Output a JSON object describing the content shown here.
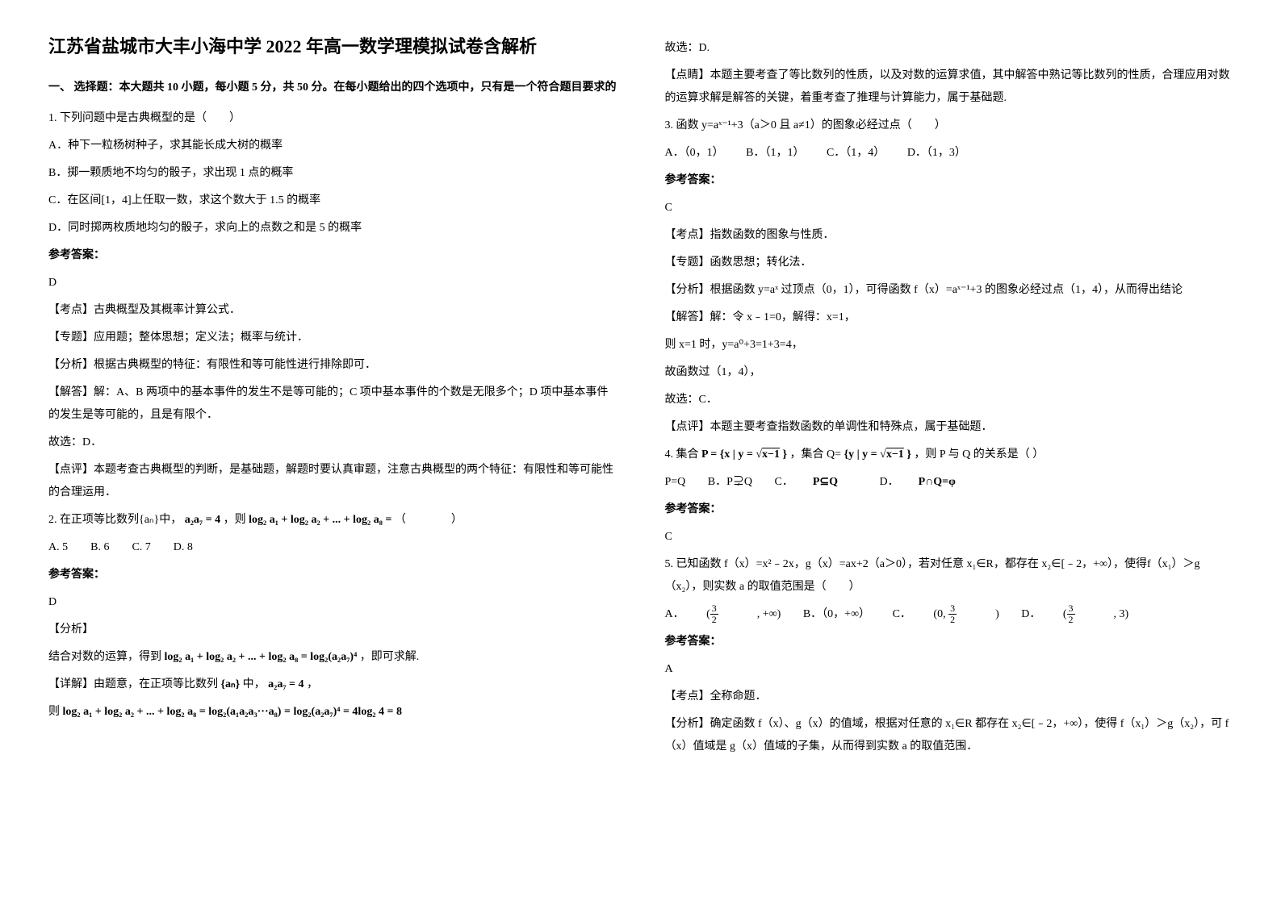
{
  "left": {
    "title": "江苏省盐城市大丰小海中学 2022 年高一数学理模拟试卷含解析",
    "section1": "一、 选择题：本大题共 10 小题，每小题 5 分，共 50 分。在每小题给出的四个选项中，只有是一个符合题目要求的",
    "q1": {
      "stem": "1. 下列问题中是古典概型的是（　　）",
      "a": "A．种下一粒杨树种子，求其能长成大树的概率",
      "b": "B．掷一颗质地不均匀的骰子，求出现 1 点的概率",
      "c": "C．在区间[1，4]上任取一数，求这个数大于 1.5 的概率",
      "d": "D．同时掷两枚质地均匀的骰子，求向上的点数之和是 5 的概率",
      "ans_label": "参考答案：",
      "ans": "D",
      "kaodian": "【考点】古典概型及其概率计算公式．",
      "zhuanti": "【专题】应用题；整体思想；定义法；概率与统计．",
      "fenxi": "【分析】根据古典概型的特征：有限性和等可能性进行排除即可．",
      "jieda": "【解答】解：A、B 两项中的基本事件的发生不是等可能的；C 项中基本事件的个数是无限多个；D 项中基本事件的发生是等可能的，且是有限个．",
      "guxuan": "故选：D．",
      "dianping": "【点评】本题考查古典概型的判断，是基础题，解题时要认真审题，注意古典概型的两个特征：有限性和等可能性的合理运用．"
    },
    "q2": {
      "stem_pre": "2. 在正项等比数列{aₙ}中，",
      "cond": "a₂a₇ = 4",
      "stem_mid": "，则",
      "expr": "log₂ a₁ + log₂ a₂ + ... + log₂ a₈ =",
      "blank": "（　　　　）",
      "choices": "A. 5　　B. 6　　C. 7　　D. 8",
      "ans_label": "参考答案：",
      "ans": "D",
      "fenxi_label": "【分析】",
      "fenxi_line": "结合对数的运算，得到",
      "fenxi_expr": "log₂ a₁ + log₂ a₂ + ... + log₂ a₈ = log₂(a₂a₇)⁴",
      "fenxi_end": "，即可求解.",
      "xiangjie_pre": "【详解】由题意，在正项等比数列",
      "set": "{aₙ}",
      "xiangjie_mid": "中，",
      "xiangjie_cond": "a₂a₇ = 4",
      "xiangjie_end": "，",
      "ze": "则",
      "final_expr": "log₂ a₁ + log₂ a₂ + ... + log₂ a₈ = log₂(a₁a₂a₃···a₈) = log₂(a₂a₇)⁴ = 4log₂ 4 = 8"
    }
  },
  "right": {
    "guxuan_d": "故选：D.",
    "dianping_top": "【点睛】本题主要考查了等比数列的性质，以及对数的运算求值，其中解答中熟记等比数列的性质，合理应用对数的运算求解是解答的关键，着重考查了推理与计算能力，属于基础题.",
    "q3": {
      "stem": "3. 函数 y=aˣ⁻¹+3（a＞0 且 a≠1）的图象必经过点（　　）",
      "choices": {
        "a": "A．（0，1）",
        "b": "B．（1，1）",
        "c": "C．（1，4）",
        "d": "D．（1，3）"
      },
      "ans_label": "参考答案：",
      "ans": "C",
      "kaodian": "【考点】指数函数的图象与性质．",
      "zhuanti": "【专题】函数思想；转化法．",
      "fenxi": "【分析】根据函数 y=aˣ 过顶点（0，1），可得函数 f（x）=aˣ⁻¹+3 的图象必经过点（1，4），从而得出结论",
      "jieda1": "【解答】解：令 x﹣1=0，解得：x=1，",
      "jieda2": "则 x=1 时，y=a⁰+3=1+3=4，",
      "jieda3": "故函数过（1，4），",
      "jieda4": "故选：C．",
      "dianping": "【点评】本题主要考查指数函数的单调性和特殊点，属于基础题．"
    },
    "q4": {
      "stem_pre": "4. 集合",
      "setP_pre": "P = {x | y = ",
      "setP_rad": "x−1",
      "setP_suf": " }",
      "stem_mid": "，集合 Q=",
      "setQ_pre": "{y | y = ",
      "setQ_rad": "x−1",
      "setQ_suf": " }",
      "stem_end": "，则 P 与 Q 的关系是（ ）",
      "choice_a": "P=Q",
      "choice_b": "B．P⊋Q",
      "choice_c": "C．",
      "choice_c_expr": "P⊆Q",
      "choice_d": "D．",
      "choice_d_expr": "P∩Q=φ",
      "ans_label": "参考答案：",
      "ans": "C"
    },
    "q5": {
      "stem": "5. 已知函数 f（x）=x²﹣2x，g（x）=ax+2（a＞0），若对任意 x₁∈R，都存在 x₂∈[﹣2，+∞），使得f（x₁）＞g（x₂），则实数 a 的取值范围是（　　）",
      "a_label": "A．",
      "b_label": "B．（0，+∞）",
      "c_label": "C．",
      "d_label": "D．",
      "frac_n": "3",
      "frac_d": "2",
      "ans_label": "参考答案：",
      "ans": "A",
      "kaodian": "【考点】全称命题．",
      "fenxi": "【分析】确定函数 f（x）、g（x）的值域，根据对任意的 x₁∈R 都存在 x₂∈[﹣2，+∞），使得 f（x₁）＞g（x₂），可 f（x）值域是 g（x）值域的子集，从而得到实数 a 的取值范围．"
    }
  }
}
